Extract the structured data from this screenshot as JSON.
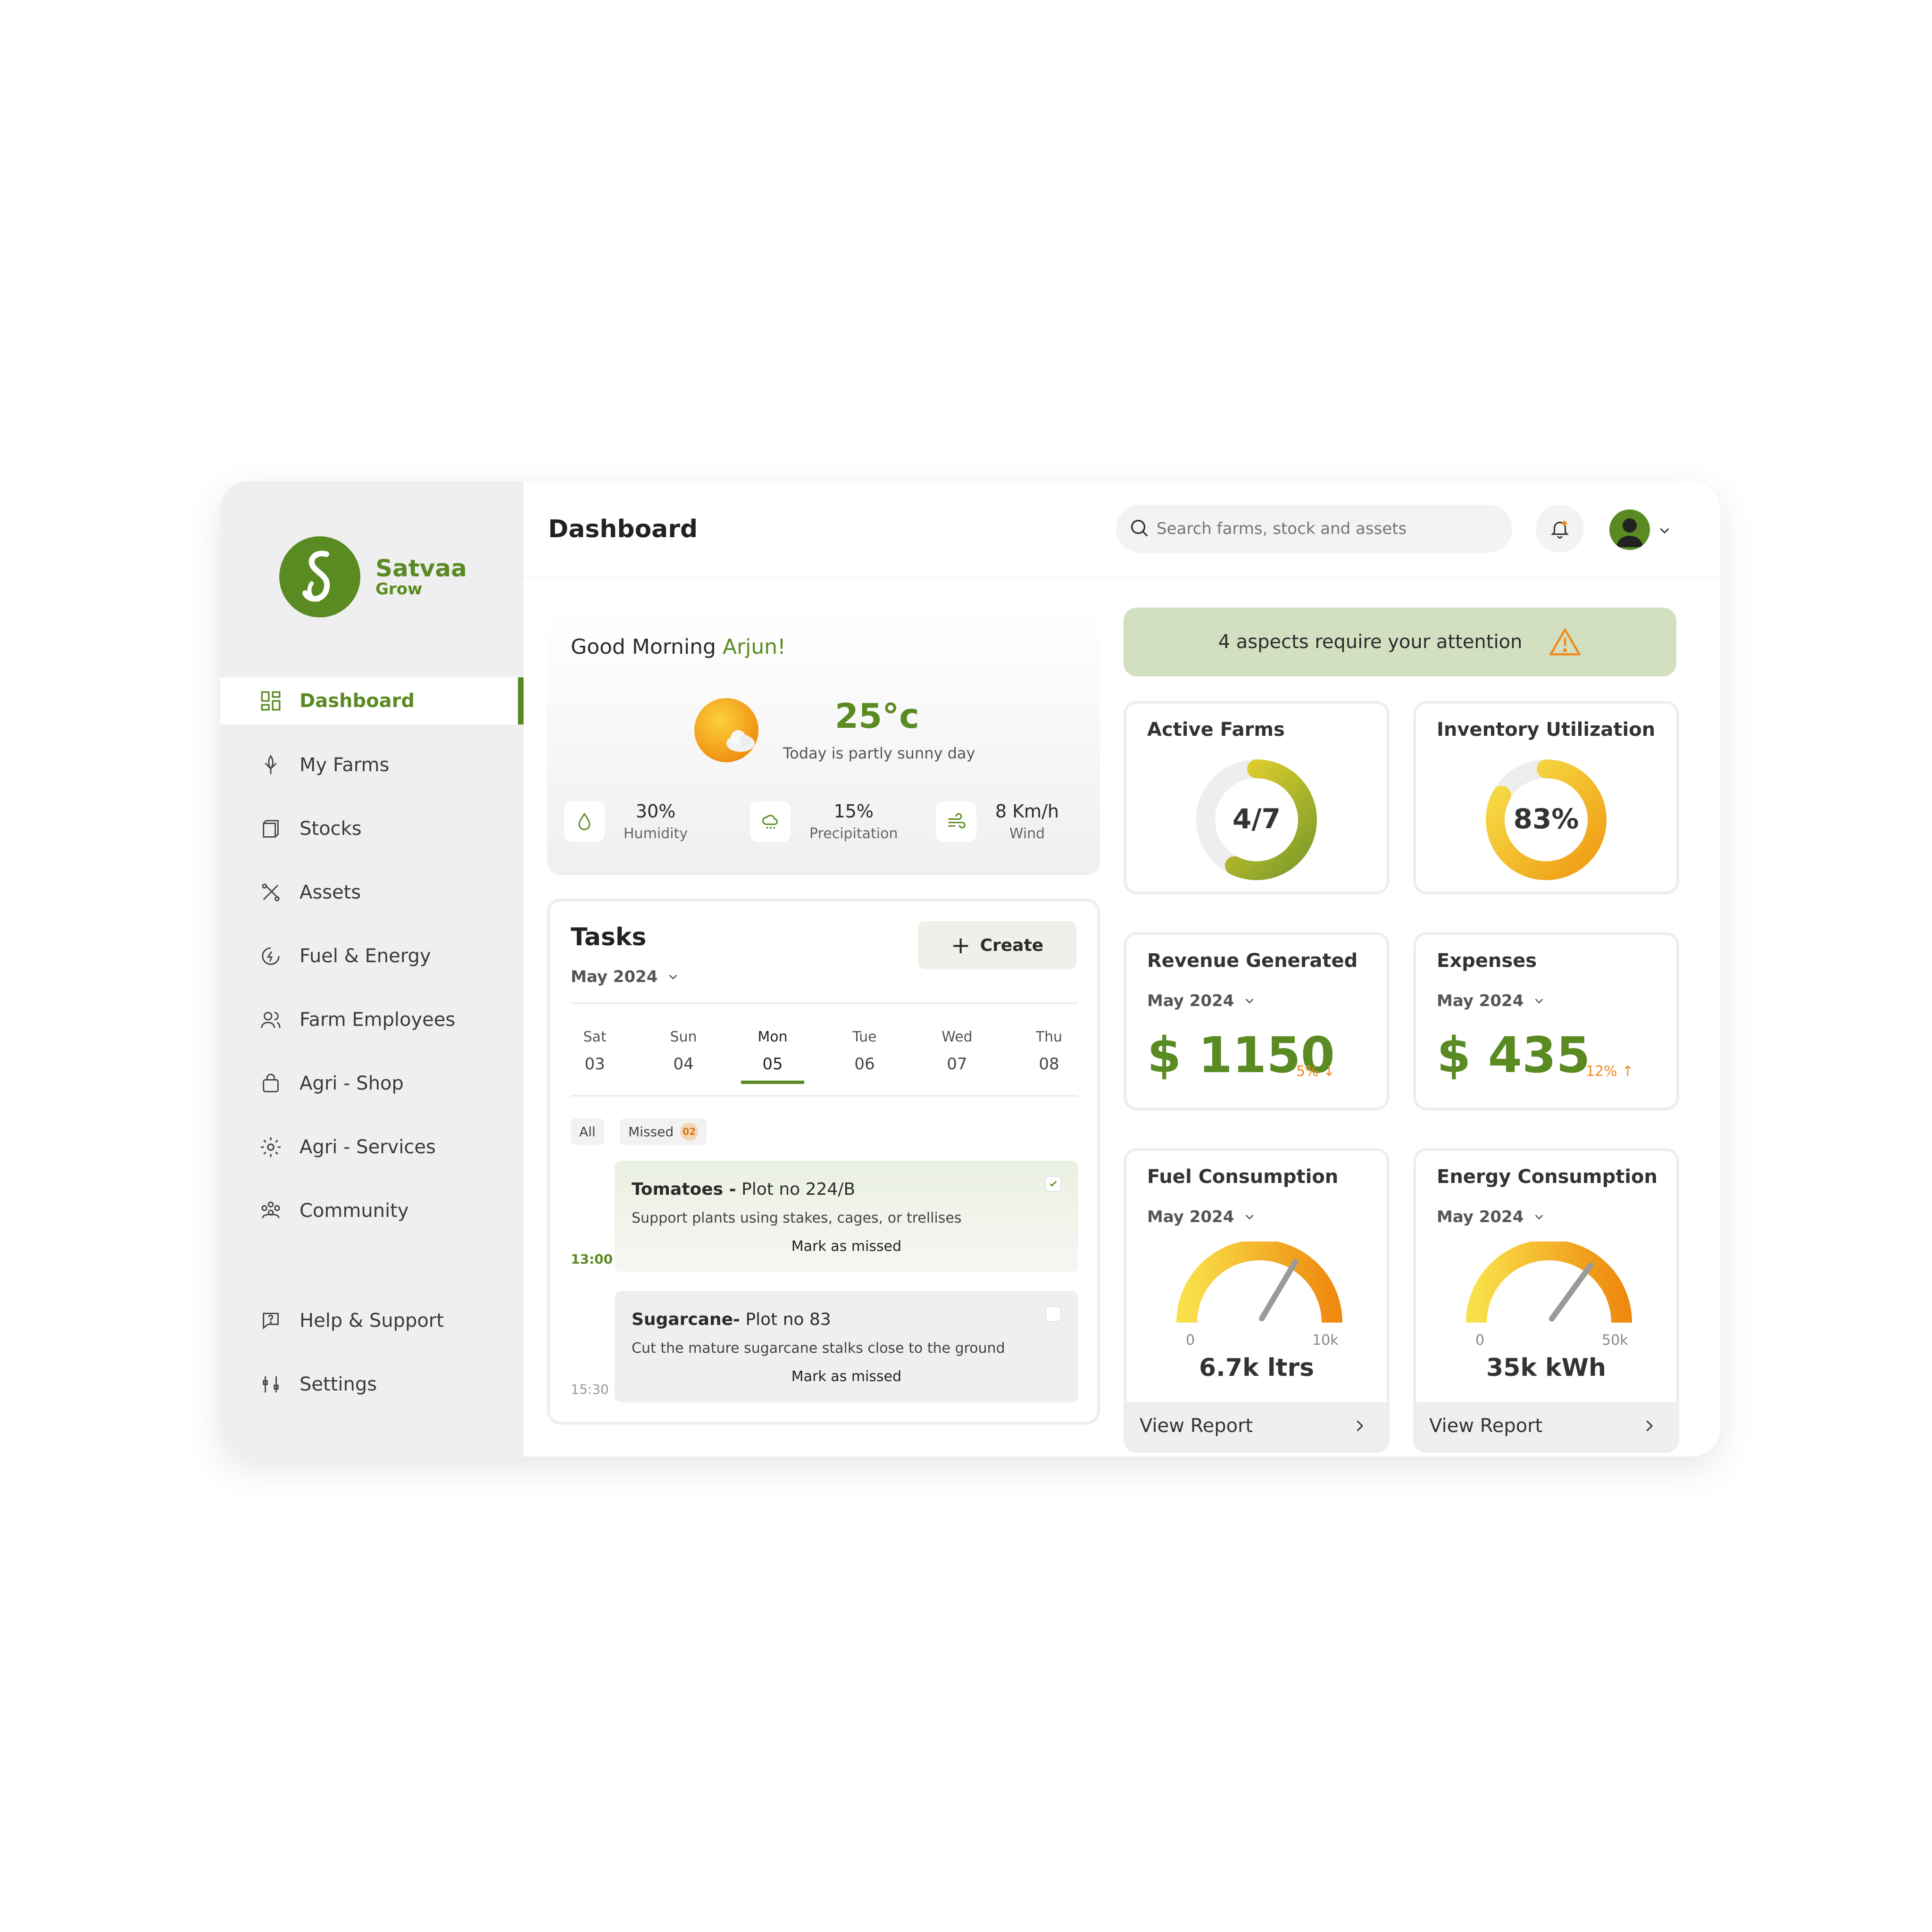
{
  "app": {
    "brand_name": "Satvaa",
    "brand_sub": "Grow",
    "page_title": "Dashboard"
  },
  "sidebar": {
    "items": [
      {
        "label": "Dashboard",
        "icon": "grid-icon",
        "active": true
      },
      {
        "label": "My Farms",
        "icon": "corn-icon"
      },
      {
        "label": "Stocks",
        "icon": "box-icon"
      },
      {
        "label": "Assets",
        "icon": "tools-icon"
      },
      {
        "label": "Fuel & Energy",
        "icon": "fuel-icon"
      },
      {
        "label": "Farm Employees",
        "icon": "users-icon"
      },
      {
        "label": "Agri - Shop",
        "icon": "bag-icon"
      },
      {
        "label": "Agri - Services",
        "icon": "service-gear-icon"
      },
      {
        "label": "Community",
        "icon": "community-icon"
      }
    ],
    "bottom_items": [
      {
        "label": "Help & Support",
        "icon": "help-icon"
      },
      {
        "label": "Settings",
        "icon": "sliders-icon"
      }
    ]
  },
  "header": {
    "search_placeholder": "Search farms, stock and assets"
  },
  "weather": {
    "greeting": "Good Morning",
    "user_name": "Arjun!",
    "temperature": "25°c",
    "description": "Today is partly sunny day",
    "stats": [
      {
        "value": "30%",
        "label": "Humidity",
        "icon": "drop-icon"
      },
      {
        "value": "15%",
        "label": "Precipitation",
        "icon": "rain-cloud-icon"
      },
      {
        "value": "8 Km/h",
        "label": "Wind",
        "icon": "wind-icon"
      }
    ]
  },
  "attention": {
    "text": "4 aspects require your attention",
    "icon": "warning-icon"
  },
  "tasks": {
    "title": "Tasks",
    "month": "May 2024",
    "create_label": "Create",
    "days": [
      {
        "name": "Sat",
        "date": "03"
      },
      {
        "name": "Sun",
        "date": "04"
      },
      {
        "name": "Mon",
        "date": "05",
        "selected": true
      },
      {
        "name": "Tue",
        "date": "06"
      },
      {
        "name": "Wed",
        "date": "07"
      },
      {
        "name": "Thu",
        "date": "08"
      }
    ],
    "filters": {
      "all": "All",
      "missed": "Missed",
      "missed_count": "02"
    },
    "items": [
      {
        "crop": "Tomatoes -",
        "plot": " Plot no 224/B",
        "desc": "Support plants using stakes, cages, or trellises",
        "action": "Mark as missed",
        "time": "13:00",
        "checked": true
      },
      {
        "crop": "Sugarcane-",
        "plot": " Plot no 83",
        "desc": "Cut the mature sugarcane stalks close to the ground",
        "action": "Mark as missed",
        "time": "15:30",
        "checked": false
      }
    ]
  },
  "metrics": {
    "active_farms": {
      "title": "Active Farms",
      "value": "4/7",
      "active": 4,
      "total": 7
    },
    "inventory": {
      "title": "Inventory Utilization",
      "value": "83%",
      "percent": 83
    },
    "revenue": {
      "title": "Revenue Generated",
      "month": "May 2024",
      "amount": "$ 1150",
      "delta": "5%",
      "trend": "down"
    },
    "expenses": {
      "title": "Expenses",
      "month": "May 2024",
      "amount": "$ 435",
      "delta": "12%",
      "trend": "up"
    },
    "fuel": {
      "title": "Fuel Consumption",
      "month": "May 2024",
      "min": "0",
      "max": "10k",
      "value": "6.7k ltrs",
      "fraction": 0.67,
      "report": "View Report"
    },
    "energy": {
      "title": "Energy Consumption",
      "month": "May 2024",
      "min": "0",
      "max": "50k",
      "value": "35k kWh",
      "fraction": 0.7,
      "report": "View Report"
    }
  },
  "colors": {
    "brand_green": "#5a8a22",
    "accent_orange": "#f08a1c",
    "gauge_yellow": "#f7cc2e",
    "attention_bg": "#d3dfc1"
  }
}
